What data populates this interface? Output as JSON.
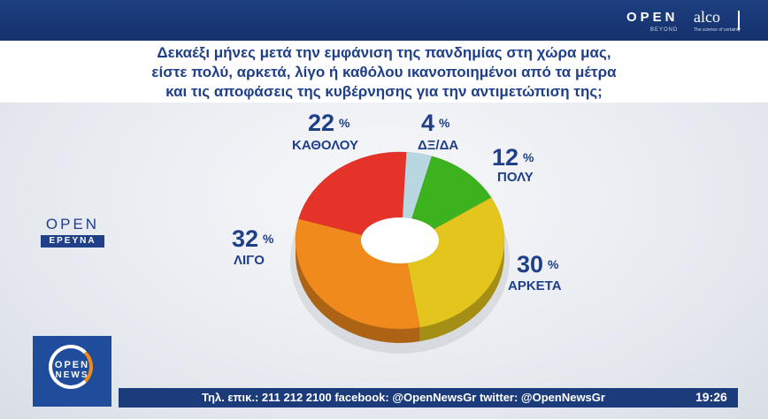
{
  "header": {
    "brand_open": "OPEN",
    "brand_beyond": "BEYOND",
    "brand_alco": "alco",
    "brand_alco_sub": "The science of certainty"
  },
  "question": {
    "line1": "Δεκαέξι μήνες μετά την εμφάνιση της πανδημίας στη χώρα μας,",
    "line2": "είστε πολύ, αρκετά, λίγο ή καθόλου ικανοποιημένοι από τα μέτρα",
    "line3": "και τις αποφάσεις της κυβέρνησης για την αντιμετώπιση της;"
  },
  "panel_logo": {
    "open": "OPEN",
    "ereuna": "ΕΡΕΥΝΑ"
  },
  "news_logo": {
    "open": "OPEN",
    "news": "NEWS"
  },
  "ticker": {
    "text": "Τηλ. επικ.: 211 212 2100 facebook: @OpenNewsGr twitter: @OpenNewsGr",
    "clock": "19:26"
  },
  "chart_data": {
    "type": "pie",
    "style": "donut-3d",
    "unit": "%",
    "slices": [
      {
        "label": "ΔΞ/ΔΑ",
        "value": 4,
        "color": "#b9d7e0"
      },
      {
        "label": "ΠΟΛΥ",
        "value": 12,
        "color": "#3cb21f"
      },
      {
        "label": "ΑΡΚΕΤΑ",
        "value": 30,
        "color": "#e4c51e"
      },
      {
        "label": "ΛΙΓΟ",
        "value": 32,
        "color": "#f08a1c"
      },
      {
        "label": "ΚΑΘΟΛΟΥ",
        "value": 22,
        "color": "#e5332a"
      }
    ]
  }
}
